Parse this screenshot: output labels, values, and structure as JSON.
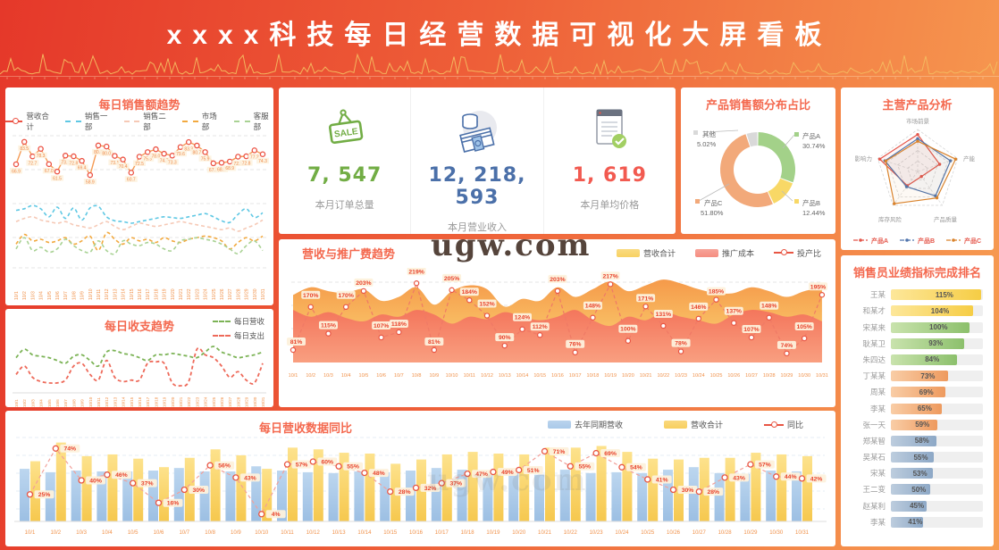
{
  "header": {
    "title": "xxxx科技每日经营数据可视化大屏看板"
  },
  "watermark": {
    "text": "ugw.com"
  },
  "dates": [
    "10/1",
    "10/2",
    "10/3",
    "10/4",
    "10/5",
    "10/6",
    "10/7",
    "10/8",
    "10/9",
    "10/10",
    "10/11",
    "10/12",
    "10/13",
    "10/14",
    "10/15",
    "10/16",
    "10/17",
    "10/18",
    "10/19",
    "10/20",
    "10/21",
    "10/22",
    "10/23",
    "10/24",
    "10/25",
    "10/26",
    "10/27",
    "10/28",
    "10/29",
    "10/30",
    "10/31"
  ],
  "kpi": {
    "cards": [
      {
        "icon": "sale-tag-icon",
        "icon_text": "SALE",
        "value": "7, 547",
        "label": "本月订单总量",
        "color": "#72ad45"
      },
      {
        "icon": "banknotes-icon",
        "icon_text": "",
        "value": "12, 218, 593",
        "label": "本月营业收入",
        "color": "#4b70a9"
      },
      {
        "icon": "receipt-check-icon",
        "icon_text": "",
        "value": "1, 619",
        "label": "本月单均价格",
        "color": "#f25a50"
      }
    ]
  },
  "chart_data": [
    {
      "id": "daily_sales_trend",
      "type": "line",
      "title": "每日销售额趋势",
      "x_axis": "dates",
      "series": [
        {
          "name": "营收合计",
          "color": "#ec5243",
          "style": "line-circle",
          "values": [
            66.9,
            83.5,
            72.7,
            78.3,
            67.0,
            61.5,
            73.3,
            72.8,
            69.4,
            58.9,
            80.8,
            80.0,
            73.1,
            70.4,
            60.7,
            72.5,
            75.9,
            78.0,
            74.7,
            73.3,
            79.6,
            83.3,
            80.7,
            75.9,
            67.6,
            68.0,
            68.9,
            72.5,
            72.8,
            77.2,
            74.3
          ]
        },
        {
          "name": "销售一部",
          "color": "#5fc8e4",
          "style": "dashed",
          "values": [
            76,
            78,
            82,
            78,
            68,
            80,
            66,
            79,
            64,
            79,
            81,
            68,
            63,
            62,
            60,
            62,
            64,
            66,
            68,
            67,
            66,
            68,
            70,
            72,
            68,
            63,
            61,
            71,
            78,
            67,
            73
          ]
        },
        {
          "name": "销售二部",
          "color": "#f6c9b6",
          "style": "dashed",
          "values": [
            62,
            66,
            68,
            64,
            62,
            60,
            62,
            58,
            56,
            54,
            58,
            62,
            56,
            52,
            56,
            60,
            58,
            56,
            58,
            60,
            62,
            60,
            58,
            56,
            54,
            52,
            54,
            50,
            54,
            58,
            64
          ]
        },
        {
          "name": "市场部",
          "color": "#f2a93f",
          "style": "dashed",
          "values": [
            34,
            46,
            38,
            40,
            36,
            38,
            42,
            34,
            38,
            44,
            26,
            48,
            40,
            34,
            42,
            38,
            40,
            36,
            42,
            38,
            36,
            40,
            42,
            44,
            42,
            38,
            28,
            36,
            42,
            38,
            44
          ]
        },
        {
          "name": "客服部",
          "color": "#a9d294",
          "style": "dashed",
          "values": [
            28,
            42,
            26,
            30,
            24,
            28,
            40,
            32,
            26,
            24,
            38,
            26,
            22,
            38,
            34,
            32,
            36,
            34,
            28,
            26,
            38,
            40,
            42,
            40,
            38,
            34,
            28,
            22,
            32,
            38,
            26
          ]
        }
      ]
    },
    {
      "id": "daily_income_expense",
      "type": "line",
      "title": "每日收支趋势",
      "x_axis": "dates",
      "series": [
        {
          "name": "每日营收",
          "color": "#7cb356",
          "style": "dashed",
          "values": [
            64,
            70,
            66,
            65,
            64,
            62,
            60,
            65,
            66,
            62,
            58,
            68,
            69,
            67,
            66,
            64,
            62,
            66,
            66,
            67,
            66,
            65,
            64,
            68,
            72,
            68,
            66,
            64,
            65,
            66,
            68
          ]
        },
        {
          "name": "每日支出",
          "color": "#ee6a5a",
          "style": "dashed",
          "values": [
            52,
            58,
            50,
            47,
            46,
            46,
            48,
            58,
            60,
            52,
            48,
            62,
            50,
            47,
            48,
            48,
            60,
            61,
            60,
            46,
            44,
            47,
            70,
            66,
            64,
            58,
            50,
            54,
            48,
            46,
            60
          ]
        }
      ]
    },
    {
      "id": "product_share",
      "type": "pie",
      "title": "产品销售额分布占比",
      "slices": [
        {
          "label": "产品A",
          "value": 30.74,
          "pct_text": "30.74%",
          "color": "#a3d189"
        },
        {
          "label": "产品B",
          "value": 12.44,
          "pct_text": "12.44%",
          "color": "#f8d866"
        },
        {
          "label": "产品C",
          "value": 51.8,
          "pct_text": "51.80%",
          "color": "#f2a97a"
        },
        {
          "label": "其他",
          "value": 5.02,
          "pct_text": "5.02%",
          "color": "#d9d9d9"
        }
      ]
    },
    {
      "id": "main_products_radar",
      "type": "radar",
      "title": "主营产品分析",
      "axes": [
        "市场前景",
        "产能",
        "产品质量",
        "库存风险",
        "影响力"
      ],
      "max": 1,
      "series": [
        {
          "name": "产品A",
          "color": "#e4564a",
          "values": [
            0.88,
            0.55,
            0.15,
            0.42,
            0.95
          ]
        },
        {
          "name": "产品B",
          "color": "#4f74ad",
          "values": [
            0.78,
            0.82,
            0.72,
            0.45,
            0.82
          ]
        },
        {
          "name": "产品C",
          "color": "#d9822b",
          "values": [
            0.72,
            0.95,
            0.78,
            0.95,
            0.8
          ]
        }
      ]
    },
    {
      "id": "revenue_promotion",
      "type": "area",
      "title": "营收与推广费趋势",
      "x_axis": "dates",
      "areas": [
        {
          "name": "营收合计",
          "color_top": "#f59a4a",
          "color_bottom": "#fcd977",
          "values": [
            70,
            78,
            74,
            72,
            76,
            64,
            68,
            78,
            60,
            74,
            80,
            76,
            58,
            66,
            64,
            78,
            68,
            76,
            84,
            74,
            80,
            86,
            82,
            76,
            72,
            72,
            78,
            74,
            68,
            74,
            78
          ]
        },
        {
          "name": "推广成本",
          "color_top": "#f4765c",
          "color_bottom": "#f99f80",
          "values": [
            46,
            40,
            44,
            39,
            36,
            42,
            40,
            46,
            42,
            34,
            40,
            38,
            44,
            40,
            37,
            40,
            46,
            37,
            32,
            40,
            37,
            44,
            40,
            37,
            34,
            42,
            46,
            44,
            40,
            42,
            36
          ]
        }
      ],
      "line": {
        "name": "投产比",
        "color": "#e85644",
        "unit": "%",
        "values": [
          81,
          170,
          115,
          170,
          203,
          107,
          118,
          219,
          81,
          205,
          184,
          152,
          90,
          124,
          112,
          203,
          76,
          148,
          217,
          100,
          171,
          131,
          78,
          146,
          185,
          137,
          107,
          148,
          74,
          105,
          195
        ]
      }
    },
    {
      "id": "sales_ranking",
      "type": "bar",
      "title": "销售员业绩指标完成排名",
      "unit": "%",
      "scale_max": 117,
      "palette": {
        "yellow": [
          "#fde79a",
          "#f6cd45"
        ],
        "green": [
          "#c9e3ad",
          "#8cc06c"
        ],
        "orange": [
          "#f9cda6",
          "#ee9a5e"
        ],
        "blue": [
          "#bdcdde",
          "#8da8c6"
        ]
      },
      "rows": [
        {
          "name": "王某",
          "pct": 115,
          "color": "yellow"
        },
        {
          "name": "和某才",
          "pct": 104,
          "color": "yellow"
        },
        {
          "name": "宋某来",
          "pct": 100,
          "color": "green"
        },
        {
          "name": "耿某卫",
          "pct": 93,
          "color": "green"
        },
        {
          "name": "朱四达",
          "pct": 84,
          "color": "green"
        },
        {
          "name": "丁某某",
          "pct": 73,
          "color": "orange"
        },
        {
          "name": "周某",
          "pct": 69,
          "color": "orange"
        },
        {
          "name": "李某",
          "pct": 65,
          "color": "orange"
        },
        {
          "name": "张一天",
          "pct": 59,
          "color": "orange"
        },
        {
          "name": "郑某智",
          "pct": 58,
          "color": "blue"
        },
        {
          "name": "吴某石",
          "pct": 55,
          "color": "blue"
        },
        {
          "name": "宋某",
          "pct": 53,
          "color": "blue"
        },
        {
          "name": "王二变",
          "pct": 50,
          "color": "blue"
        },
        {
          "name": "赵某利",
          "pct": 45,
          "color": "blue"
        },
        {
          "name": "李某",
          "pct": 41,
          "color": "blue"
        }
      ]
    },
    {
      "id": "daily_revenue_yoy",
      "type": "bar+line",
      "title": "每日营收数据同比",
      "x_axis": "dates",
      "series": [
        {
          "name": "去年同期营收",
          "color": "#a9c9e9",
          "values": [
            62,
            58,
            60,
            59,
            59,
            60,
            63,
            59,
            59,
            65,
            60,
            58,
            57,
            59,
            58,
            60,
            63,
            61,
            58,
            57,
            55,
            61,
            57,
            58,
            57,
            61,
            64,
            57,
            56,
            60,
            59
          ]
        },
        {
          "name": "营收合计",
          "color": "#f8cf5e",
          "values": [
            71,
            93,
            77,
            79,
            74,
            64,
            75,
            85,
            78,
            62,
            87,
            85,
            81,
            80,
            68,
            73,
            79,
            82,
            80,
            79,
            87,
            87,
            89,
            82,
            74,
            73,
            75,
            75,
            81,
            79,
            77
          ]
        }
      ],
      "line": {
        "name": "同比",
        "color": "#e85644",
        "unit": "%",
        "values": [
          25,
          74,
          40,
          46,
          37,
          16,
          30,
          56,
          43,
          4,
          57,
          60,
          55,
          48,
          28,
          32,
          37,
          47,
          49,
          51,
          71,
          55,
          69,
          54,
          41,
          30,
          28,
          43,
          57,
          44,
          42
        ]
      }
    }
  ]
}
